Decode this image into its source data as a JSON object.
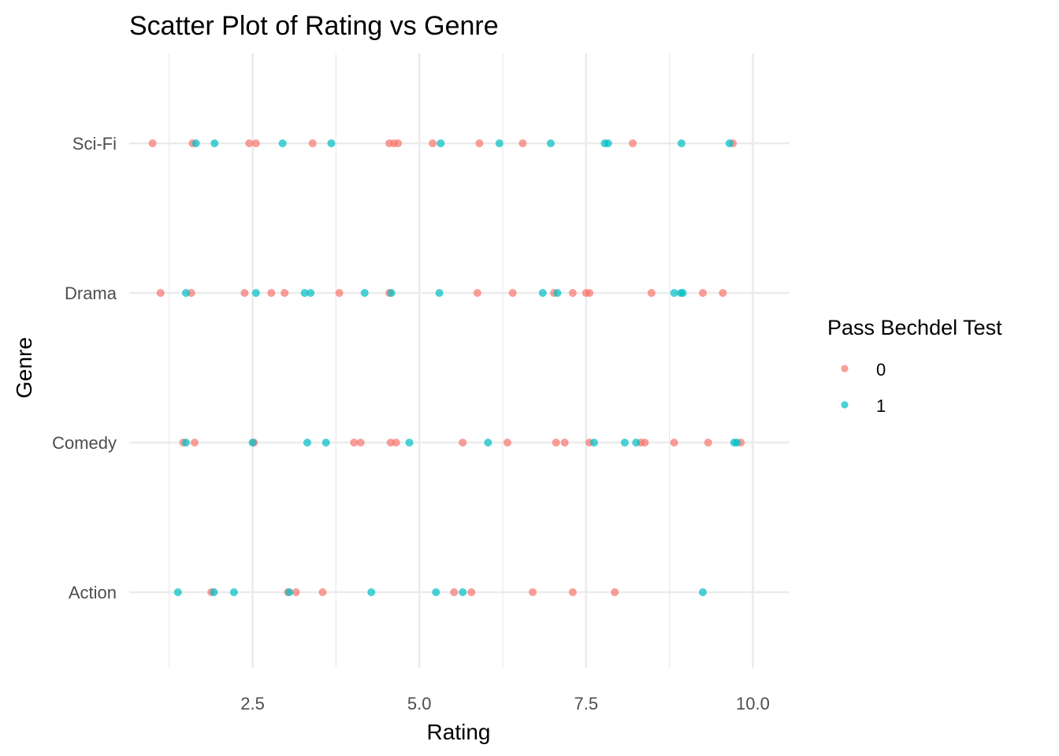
{
  "chart_data": {
    "type": "scatter",
    "title": "Scatter Plot of Rating vs Genre",
    "xlabel": "Rating",
    "ylabel": "Genre",
    "xlim": [
      0.65,
      10.55
    ],
    "x_ticks": [
      2.5,
      5.0,
      7.5,
      10.0
    ],
    "x_tick_labels": [
      "2.5",
      "5.0",
      "7.5",
      "10.0"
    ],
    "x_minor_ticks": [
      1.25,
      3.75,
      6.25,
      8.75
    ],
    "categories": [
      "Action",
      "Comedy",
      "Drama",
      "Sci-Fi"
    ],
    "grid": true,
    "legend": {
      "title": "Pass Bechdel Test",
      "position": "right",
      "entries": [
        {
          "label": "0",
          "color": "#F8766D"
        },
        {
          "label": "1",
          "color": "#00BFC4"
        }
      ]
    },
    "point_opacity": 0.7,
    "series": [
      {
        "name": "0",
        "color": "#F8766D",
        "points": [
          {
            "genre": "Sci-Fi",
            "x": 1.0
          },
          {
            "genre": "Sci-Fi",
            "x": 1.6
          },
          {
            "genre": "Sci-Fi",
            "x": 2.45
          },
          {
            "genre": "Sci-Fi",
            "x": 2.55
          },
          {
            "genre": "Sci-Fi",
            "x": 3.4
          },
          {
            "genre": "Sci-Fi",
            "x": 4.55
          },
          {
            "genre": "Sci-Fi",
            "x": 4.62
          },
          {
            "genre": "Sci-Fi",
            "x": 4.68
          },
          {
            "genre": "Sci-Fi",
            "x": 5.2
          },
          {
            "genre": "Sci-Fi",
            "x": 5.9
          },
          {
            "genre": "Sci-Fi",
            "x": 6.55
          },
          {
            "genre": "Sci-Fi",
            "x": 8.2
          },
          {
            "genre": "Sci-Fi",
            "x": 9.7
          },
          {
            "genre": "Drama",
            "x": 1.12
          },
          {
            "genre": "Drama",
            "x": 1.58
          },
          {
            "genre": "Drama",
            "x": 2.38
          },
          {
            "genre": "Drama",
            "x": 2.78
          },
          {
            "genre": "Drama",
            "x": 2.98
          },
          {
            "genre": "Drama",
            "x": 3.8
          },
          {
            "genre": "Drama",
            "x": 4.55
          },
          {
            "genre": "Drama",
            "x": 5.87
          },
          {
            "genre": "Drama",
            "x": 6.4
          },
          {
            "genre": "Drama",
            "x": 7.02
          },
          {
            "genre": "Drama",
            "x": 7.3
          },
          {
            "genre": "Drama",
            "x": 7.5
          },
          {
            "genre": "Drama",
            "x": 7.55
          },
          {
            "genre": "Drama",
            "x": 8.48
          },
          {
            "genre": "Drama",
            "x": 9.25
          },
          {
            "genre": "Drama",
            "x": 9.55
          },
          {
            "genre": "Comedy",
            "x": 1.46
          },
          {
            "genre": "Comedy",
            "x": 1.63
          },
          {
            "genre": "Comedy",
            "x": 2.52
          },
          {
            "genre": "Comedy",
            "x": 4.02
          },
          {
            "genre": "Comedy",
            "x": 4.12
          },
          {
            "genre": "Comedy",
            "x": 4.57
          },
          {
            "genre": "Comedy",
            "x": 4.65
          },
          {
            "genre": "Comedy",
            "x": 5.65
          },
          {
            "genre": "Comedy",
            "x": 6.32
          },
          {
            "genre": "Comedy",
            "x": 7.05
          },
          {
            "genre": "Comedy",
            "x": 7.18
          },
          {
            "genre": "Comedy",
            "x": 7.55
          },
          {
            "genre": "Comedy",
            "x": 8.32
          },
          {
            "genre": "Comedy",
            "x": 8.38
          },
          {
            "genre": "Comedy",
            "x": 8.82
          },
          {
            "genre": "Comedy",
            "x": 9.33
          },
          {
            "genre": "Comedy",
            "x": 9.82
          },
          {
            "genre": "Action",
            "x": 1.88
          },
          {
            "genre": "Action",
            "x": 3.03
          },
          {
            "genre": "Action",
            "x": 3.15
          },
          {
            "genre": "Action",
            "x": 3.55
          },
          {
            "genre": "Action",
            "x": 5.52
          },
          {
            "genre": "Action",
            "x": 5.78
          },
          {
            "genre": "Action",
            "x": 6.7
          },
          {
            "genre": "Action",
            "x": 7.3
          },
          {
            "genre": "Action",
            "x": 7.93
          }
        ]
      },
      {
        "name": "1",
        "color": "#00BFC4",
        "points": [
          {
            "genre": "Sci-Fi",
            "x": 1.65
          },
          {
            "genre": "Sci-Fi",
            "x": 1.93
          },
          {
            "genre": "Sci-Fi",
            "x": 2.95
          },
          {
            "genre": "Sci-Fi",
            "x": 3.68
          },
          {
            "genre": "Sci-Fi",
            "x": 5.32
          },
          {
            "genre": "Sci-Fi",
            "x": 6.2
          },
          {
            "genre": "Sci-Fi",
            "x": 6.97
          },
          {
            "genre": "Sci-Fi",
            "x": 7.78
          },
          {
            "genre": "Sci-Fi",
            "x": 7.83
          },
          {
            "genre": "Sci-Fi",
            "x": 8.93
          },
          {
            "genre": "Sci-Fi",
            "x": 9.65
          },
          {
            "genre": "Drama",
            "x": 1.5
          },
          {
            "genre": "Drama",
            "x": 2.55
          },
          {
            "genre": "Drama",
            "x": 3.28
          },
          {
            "genre": "Drama",
            "x": 3.37
          },
          {
            "genre": "Drama",
            "x": 4.18
          },
          {
            "genre": "Drama",
            "x": 4.58
          },
          {
            "genre": "Drama",
            "x": 5.3
          },
          {
            "genre": "Drama",
            "x": 6.85
          },
          {
            "genre": "Drama",
            "x": 7.07
          },
          {
            "genre": "Drama",
            "x": 8.82
          },
          {
            "genre": "Drama",
            "x": 8.92
          },
          {
            "genre": "Drama",
            "x": 8.95
          },
          {
            "genre": "Comedy",
            "x": 1.5
          },
          {
            "genre": "Comedy",
            "x": 2.5
          },
          {
            "genre": "Comedy",
            "x": 3.32
          },
          {
            "genre": "Comedy",
            "x": 3.6
          },
          {
            "genre": "Comedy",
            "x": 4.85
          },
          {
            "genre": "Comedy",
            "x": 6.03
          },
          {
            "genre": "Comedy",
            "x": 7.62
          },
          {
            "genre": "Comedy",
            "x": 8.08
          },
          {
            "genre": "Comedy",
            "x": 8.25
          },
          {
            "genre": "Comedy",
            "x": 9.72
          },
          {
            "genre": "Comedy",
            "x": 9.76
          },
          {
            "genre": "Action",
            "x": 1.38
          },
          {
            "genre": "Action",
            "x": 1.92
          },
          {
            "genre": "Action",
            "x": 2.22
          },
          {
            "genre": "Action",
            "x": 3.05
          },
          {
            "genre": "Action",
            "x": 4.28
          },
          {
            "genre": "Action",
            "x": 5.25
          },
          {
            "genre": "Action",
            "x": 5.65
          },
          {
            "genre": "Action",
            "x": 9.25
          }
        ]
      }
    ]
  }
}
